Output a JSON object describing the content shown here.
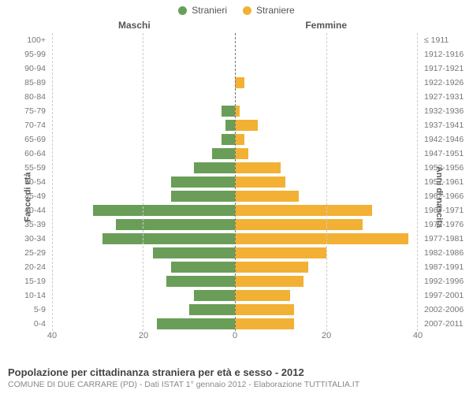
{
  "legend": {
    "male": {
      "label": "Stranieri",
      "color": "#6a9e58"
    },
    "female": {
      "label": "Straniere",
      "color": "#f2b134"
    }
  },
  "column_headers": {
    "left": "Maschi",
    "right": "Femmine"
  },
  "axis_titles": {
    "left": "Fasce di età",
    "right": "Anni di nascita"
  },
  "chart": {
    "type": "population-pyramid",
    "x_max": 40,
    "x_ticks_left": [
      40,
      20,
      0
    ],
    "x_ticks_right": [
      0,
      20,
      40
    ],
    "grid_color": "#cccccc",
    "center_line_color": "#777777",
    "background": "#ffffff",
    "bar_width_ratio": 0.76,
    "label_fontsize": 10.5,
    "tick_fontsize": 11,
    "rows": [
      {
        "age": "100+",
        "birth": "≤ 1911",
        "m": 0,
        "f": 0
      },
      {
        "age": "95-99",
        "birth": "1912-1916",
        "m": 0,
        "f": 0
      },
      {
        "age": "90-94",
        "birth": "1917-1921",
        "m": 0,
        "f": 0
      },
      {
        "age": "85-89",
        "birth": "1922-1926",
        "m": 0,
        "f": 2
      },
      {
        "age": "80-84",
        "birth": "1927-1931",
        "m": 0,
        "f": 0
      },
      {
        "age": "75-79",
        "birth": "1932-1936",
        "m": 3,
        "f": 1
      },
      {
        "age": "70-74",
        "birth": "1937-1941",
        "m": 2,
        "f": 5
      },
      {
        "age": "65-69",
        "birth": "1942-1946",
        "m": 3,
        "f": 2
      },
      {
        "age": "60-64",
        "birth": "1947-1951",
        "m": 5,
        "f": 3
      },
      {
        "age": "55-59",
        "birth": "1952-1956",
        "m": 9,
        "f": 10
      },
      {
        "age": "50-54",
        "birth": "1957-1961",
        "m": 14,
        "f": 11
      },
      {
        "age": "45-49",
        "birth": "1962-1966",
        "m": 14,
        "f": 14
      },
      {
        "age": "40-44",
        "birth": "1967-1971",
        "m": 31,
        "f": 30
      },
      {
        "age": "35-39",
        "birth": "1972-1976",
        "m": 26,
        "f": 28
      },
      {
        "age": "30-34",
        "birth": "1977-1981",
        "m": 29,
        "f": 38
      },
      {
        "age": "25-29",
        "birth": "1982-1986",
        "m": 18,
        "f": 20
      },
      {
        "age": "20-24",
        "birth": "1987-1991",
        "m": 14,
        "f": 16
      },
      {
        "age": "15-19",
        "birth": "1992-1996",
        "m": 15,
        "f": 15
      },
      {
        "age": "10-14",
        "birth": "1997-2001",
        "m": 9,
        "f": 12
      },
      {
        "age": "5-9",
        "birth": "2002-2006",
        "m": 10,
        "f": 13
      },
      {
        "age": "0-4",
        "birth": "2007-2011",
        "m": 17,
        "f": 13
      }
    ]
  },
  "footer": {
    "title": "Popolazione per cittadinanza straniera per età e sesso - 2012",
    "subtitle": "COMUNE DI DUE CARRARE (PD) - Dati ISTAT 1° gennaio 2012 - Elaborazione TUTTITALIA.IT"
  }
}
